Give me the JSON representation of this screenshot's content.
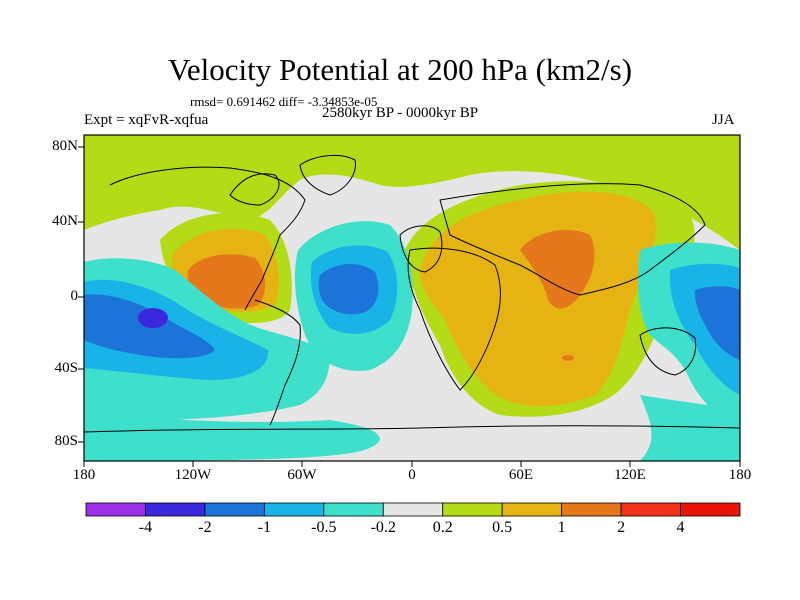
{
  "title": "Velocity Potential at 200 hPa (km2/s)",
  "stats": "rmsd= 0.691462 diff= -3.34853e-05",
  "experiment": "Expt = xqFvR-xqfua",
  "period": "2580kyr BP - 0000kyr BP",
  "season": "JJA",
  "lat_labels": [
    "80N",
    "40N",
    "0",
    "40S",
    "80S"
  ],
  "lon_labels": [
    "180",
    "120W",
    "60W",
    "0",
    "60E",
    "120E",
    "180"
  ],
  "colorbar": {
    "labels": [
      "-4",
      "-2",
      "-1",
      "-0.5",
      "-0.2",
      "0.2",
      "0.5",
      "1",
      "2",
      "4"
    ],
    "colors": [
      "#9b30e6",
      "#3c28dc",
      "#1c74d8",
      "#18b4e8",
      "#3ee0cc",
      "#e6e6e6",
      "#b4dc16",
      "#e6b412",
      "#e6781c",
      "#f0321a",
      "#e8140a"
    ]
  },
  "colors": {
    "level_pos1": "#b4dc16",
    "level_pos2": "#e6b412",
    "level_pos3": "#e6781c",
    "level_neutral": "#e6e6e6",
    "level_neg1": "#3ee0cc",
    "level_neg2": "#18b4e8",
    "level_neg3": "#1c74d8",
    "level_neg4": "#3c28dc"
  }
}
